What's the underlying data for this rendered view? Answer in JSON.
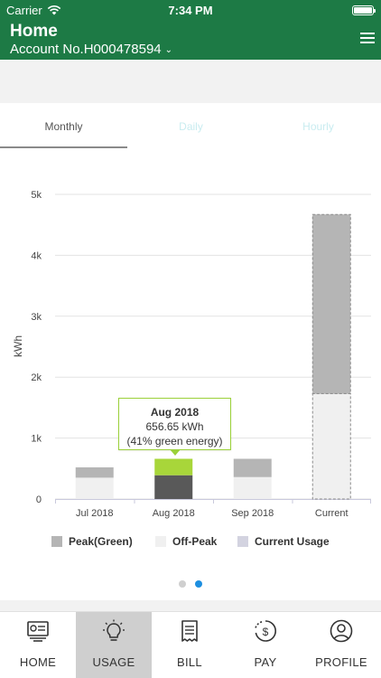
{
  "status_bar": {
    "carrier": "Carrier",
    "time": "7:34 PM"
  },
  "header": {
    "title": "Home",
    "account": "Account No.H000478594"
  },
  "tabs": [
    {
      "label": "Monthly",
      "active": true
    },
    {
      "label": "Daily",
      "active": false
    },
    {
      "label": "Hourly",
      "active": false
    }
  ],
  "chart_data": {
    "type": "bar",
    "stacked": true,
    "ylabel": "kWh",
    "y_ticks": [
      "0",
      "1k",
      "2k",
      "3k",
      "4k",
      "5k"
    ],
    "ylim": [
      0,
      5000
    ],
    "categories": [
      "Jul 2018",
      "Aug 2018",
      "Sep 2018",
      "Current"
    ],
    "series": [
      {
        "name": "Peak(Green)",
        "values": [
          170,
          270,
          300,
          2940
        ],
        "color": "#b5b5b5"
      },
      {
        "name": "Off-Peak",
        "values": [
          350,
          390,
          360,
          1730
        ],
        "color": "#f0f0f0"
      }
    ],
    "highlight": {
      "category": "Aug 2018",
      "green_color": "#a8d63a",
      "dark_color": "#595959"
    },
    "current_usage_color": "#d3d3e0",
    "grid": true,
    "tooltip": {
      "title": "Aug 2018",
      "value": "656.65 kWh",
      "note": "(41% green energy)"
    }
  },
  "legend": [
    {
      "label": "Peak(Green)",
      "color": "#b5b5b5"
    },
    {
      "label": "Off-Peak",
      "color": "#f0f0f0"
    },
    {
      "label": "Current Usage",
      "color": "#d3d3e0"
    }
  ],
  "pager": {
    "count": 2,
    "active_index": 1
  },
  "tabbar": [
    {
      "label": "HOME",
      "icon": "dashboard-icon",
      "active": false
    },
    {
      "label": "USAGE",
      "icon": "lightbulb-icon",
      "active": true
    },
    {
      "label": "BILL",
      "icon": "bill-icon",
      "active": false
    },
    {
      "label": "PAY",
      "icon": "pay-icon",
      "active": false
    },
    {
      "label": "PROFILE",
      "icon": "profile-icon",
      "active": false
    }
  ]
}
